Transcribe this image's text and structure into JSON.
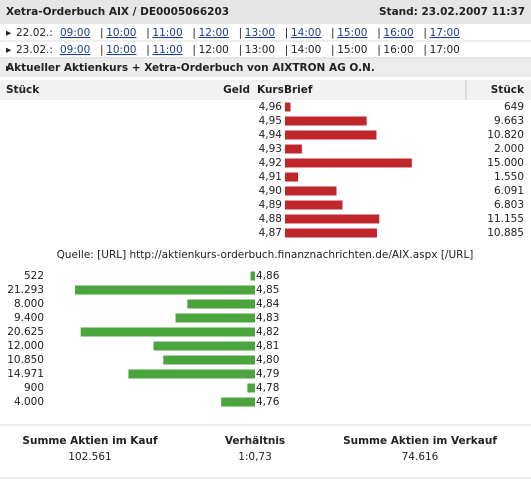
{
  "header": {
    "title": "Xetra-Orderbuch AIX / DE0005066203",
    "stand": "Stand: 23.02.2007 11:37"
  },
  "nav": [
    {
      "day": "22.02.:",
      "times": [
        {
          "label": "09:00",
          "link": true
        },
        {
          "label": "10:00",
          "link": true
        },
        {
          "label": "11:00",
          "link": true
        },
        {
          "label": "12:00",
          "link": true
        },
        {
          "label": "13:00",
          "link": true
        },
        {
          "label": "14:00",
          "link": true
        },
        {
          "label": "15:00",
          "link": true
        },
        {
          "label": "16:00",
          "link": true
        },
        {
          "label": "17:00",
          "link": true
        }
      ]
    },
    {
      "day": "23.02.:",
      "times": [
        {
          "label": "09:00",
          "link": true
        },
        {
          "label": "10:00",
          "link": true
        },
        {
          "label": "11:00",
          "link": true
        },
        {
          "label": "12:00",
          "link": false
        },
        {
          "label": "13:00",
          "link": false
        },
        {
          "label": "14:00",
          "link": false
        },
        {
          "label": "15:00",
          "link": false
        },
        {
          "label": "16:00",
          "link": false
        },
        {
          "label": "17:00",
          "link": false
        }
      ]
    }
  ],
  "section_title": "Aktueller Aktienkurs + Xetra-Orderbuch von AIXTRON AG O.N.",
  "columns": {
    "bid_volume": "Stück",
    "bid": "Geld",
    "price": "Kurs",
    "ask": "Brief",
    "ask_volume": "Stück"
  },
  "ask_color": "#c0272d",
  "bid_color": "#4aa63c",
  "asks": [
    {
      "price": "4,96",
      "volume": {
        "value": 649,
        "label": "649"
      }
    },
    {
      "price": "4,95",
      "volume": {
        "value": 9663,
        "label": "9.663"
      }
    },
    {
      "price": "4,94",
      "volume": {
        "value": 10820,
        "label": "10.820"
      }
    },
    {
      "price": "4,93",
      "volume": {
        "value": 2000,
        "label": "2.000"
      }
    },
    {
      "price": "4,92",
      "volume": {
        "value": 15000,
        "label": "15.000"
      }
    },
    {
      "price": "4,91",
      "volume": {
        "value": 1550,
        "label": "1.550"
      }
    },
    {
      "price": "4,90",
      "volume": {
        "value": 6091,
        "label": "6.091"
      }
    },
    {
      "price": "4,89",
      "volume": {
        "value": 6803,
        "label": "6.803"
      }
    },
    {
      "price": "4,88",
      "volume": {
        "value": 11155,
        "label": "11.155"
      }
    },
    {
      "price": "4,87",
      "volume": {
        "value": 10885,
        "label": "10.885"
      }
    }
  ],
  "source": "Quelle: [URL] http://aktienkurs-orderbuch.finanznachrichten.de/AIX.aspx [/URL]",
  "bids": [
    {
      "price": "4,86",
      "volume": {
        "value": 522,
        "label": "522"
      }
    },
    {
      "price": "4,85",
      "volume": {
        "value": 21293,
        "label": "21.293"
      }
    },
    {
      "price": "4,84",
      "volume": {
        "value": 8000,
        "label": "8.000"
      }
    },
    {
      "price": "4,83",
      "volume": {
        "value": 9400,
        "label": "9.400"
      }
    },
    {
      "price": "4,82",
      "volume": {
        "value": 20625,
        "label": "20.625"
      }
    },
    {
      "price": "4,81",
      "volume": {
        "value": 12000,
        "label": "12.000"
      }
    },
    {
      "price": "4,80",
      "volume": {
        "value": 10850,
        "label": "10.850"
      }
    },
    {
      "price": "4,79",
      "volume": {
        "value": 14971,
        "label": "14.971"
      }
    },
    {
      "price": "4,78",
      "volume": {
        "value": 900,
        "label": "900"
      }
    },
    {
      "price": "4,76",
      "volume": {
        "value": 4000,
        "label": "4.000"
      }
    }
  ],
  "summary": [
    {
      "label": "Summe Aktien im Kauf",
      "value": "102.561"
    },
    {
      "label": "Verhältnis",
      "value": "1:0,73"
    },
    {
      "label": "Summe Aktien im Verkauf",
      "value": "74.616"
    }
  ]
}
